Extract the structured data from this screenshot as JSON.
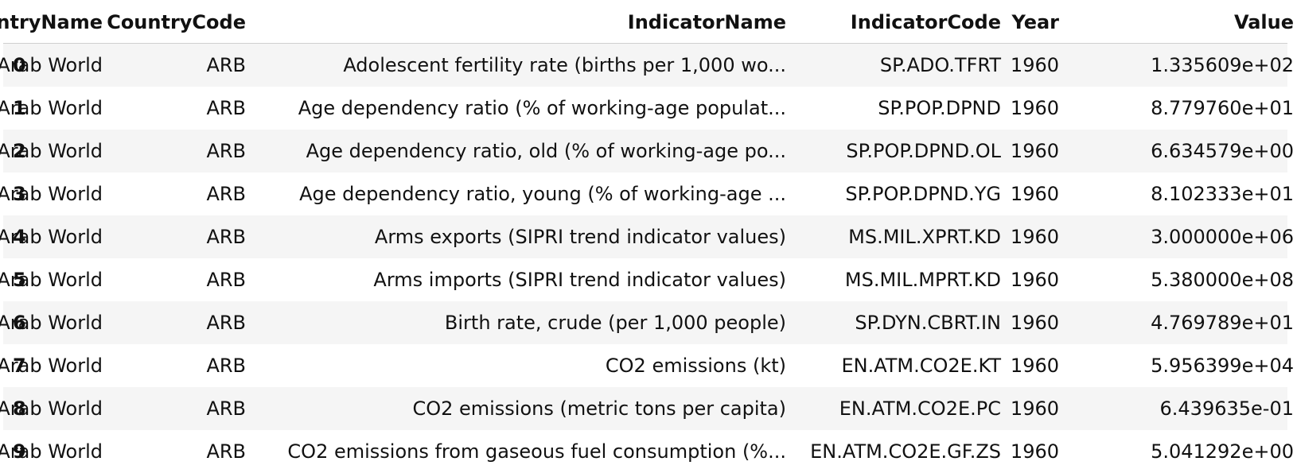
{
  "table": {
    "columns": [
      "CountryName",
      "CountryCode",
      "IndicatorName",
      "IndicatorCode",
      "Year",
      "Value"
    ],
    "rows": [
      {
        "index": "0",
        "CountryName": "Arab World",
        "CountryCode": "ARB",
        "IndicatorName": "Adolescent fertility rate (births per 1,000 wo...",
        "IndicatorCode": "SP.ADO.TFRT",
        "Year": "1960",
        "Value": "1.335609e+02"
      },
      {
        "index": "1",
        "CountryName": "Arab World",
        "CountryCode": "ARB",
        "IndicatorName": "Age dependency ratio (% of working-age populat...",
        "IndicatorCode": "SP.POP.DPND",
        "Year": "1960",
        "Value": "8.779760e+01"
      },
      {
        "index": "2",
        "CountryName": "Arab World",
        "CountryCode": "ARB",
        "IndicatorName": "Age dependency ratio, old (% of working-age po...",
        "IndicatorCode": "SP.POP.DPND.OL",
        "Year": "1960",
        "Value": "6.634579e+00"
      },
      {
        "index": "3",
        "CountryName": "Arab World",
        "CountryCode": "ARB",
        "IndicatorName": "Age dependency ratio, young (% of working-age ...",
        "IndicatorCode": "SP.POP.DPND.YG",
        "Year": "1960",
        "Value": "8.102333e+01"
      },
      {
        "index": "4",
        "CountryName": "Arab World",
        "CountryCode": "ARB",
        "IndicatorName": "Arms exports (SIPRI trend indicator values)",
        "IndicatorCode": "MS.MIL.XPRT.KD",
        "Year": "1960",
        "Value": "3.000000e+06"
      },
      {
        "index": "5",
        "CountryName": "Arab World",
        "CountryCode": "ARB",
        "IndicatorName": "Arms imports (SIPRI trend indicator values)",
        "IndicatorCode": "MS.MIL.MPRT.KD",
        "Year": "1960",
        "Value": "5.380000e+08"
      },
      {
        "index": "6",
        "CountryName": "Arab World",
        "CountryCode": "ARB",
        "IndicatorName": "Birth rate, crude (per 1,000 people)",
        "IndicatorCode": "SP.DYN.CBRT.IN",
        "Year": "1960",
        "Value": "4.769789e+01"
      },
      {
        "index": "7",
        "CountryName": "Arab World",
        "CountryCode": "ARB",
        "IndicatorName": "CO2 emissions (kt)",
        "IndicatorCode": "EN.ATM.CO2E.KT",
        "Year": "1960",
        "Value": "5.956399e+04"
      },
      {
        "index": "8",
        "CountryName": "Arab World",
        "CountryCode": "ARB",
        "IndicatorName": "CO2 emissions (metric tons per capita)",
        "IndicatorCode": "EN.ATM.CO2E.PC",
        "Year": "1960",
        "Value": "6.439635e-01"
      },
      {
        "index": "9",
        "CountryName": "Arab World",
        "CountryCode": "ARB",
        "IndicatorName": "CO2 emissions from gaseous fuel consumption (%...",
        "IndicatorCode": "EN.ATM.CO2E.GF.ZS",
        "Year": "1960",
        "Value": "5.041292e+00"
      }
    ]
  }
}
